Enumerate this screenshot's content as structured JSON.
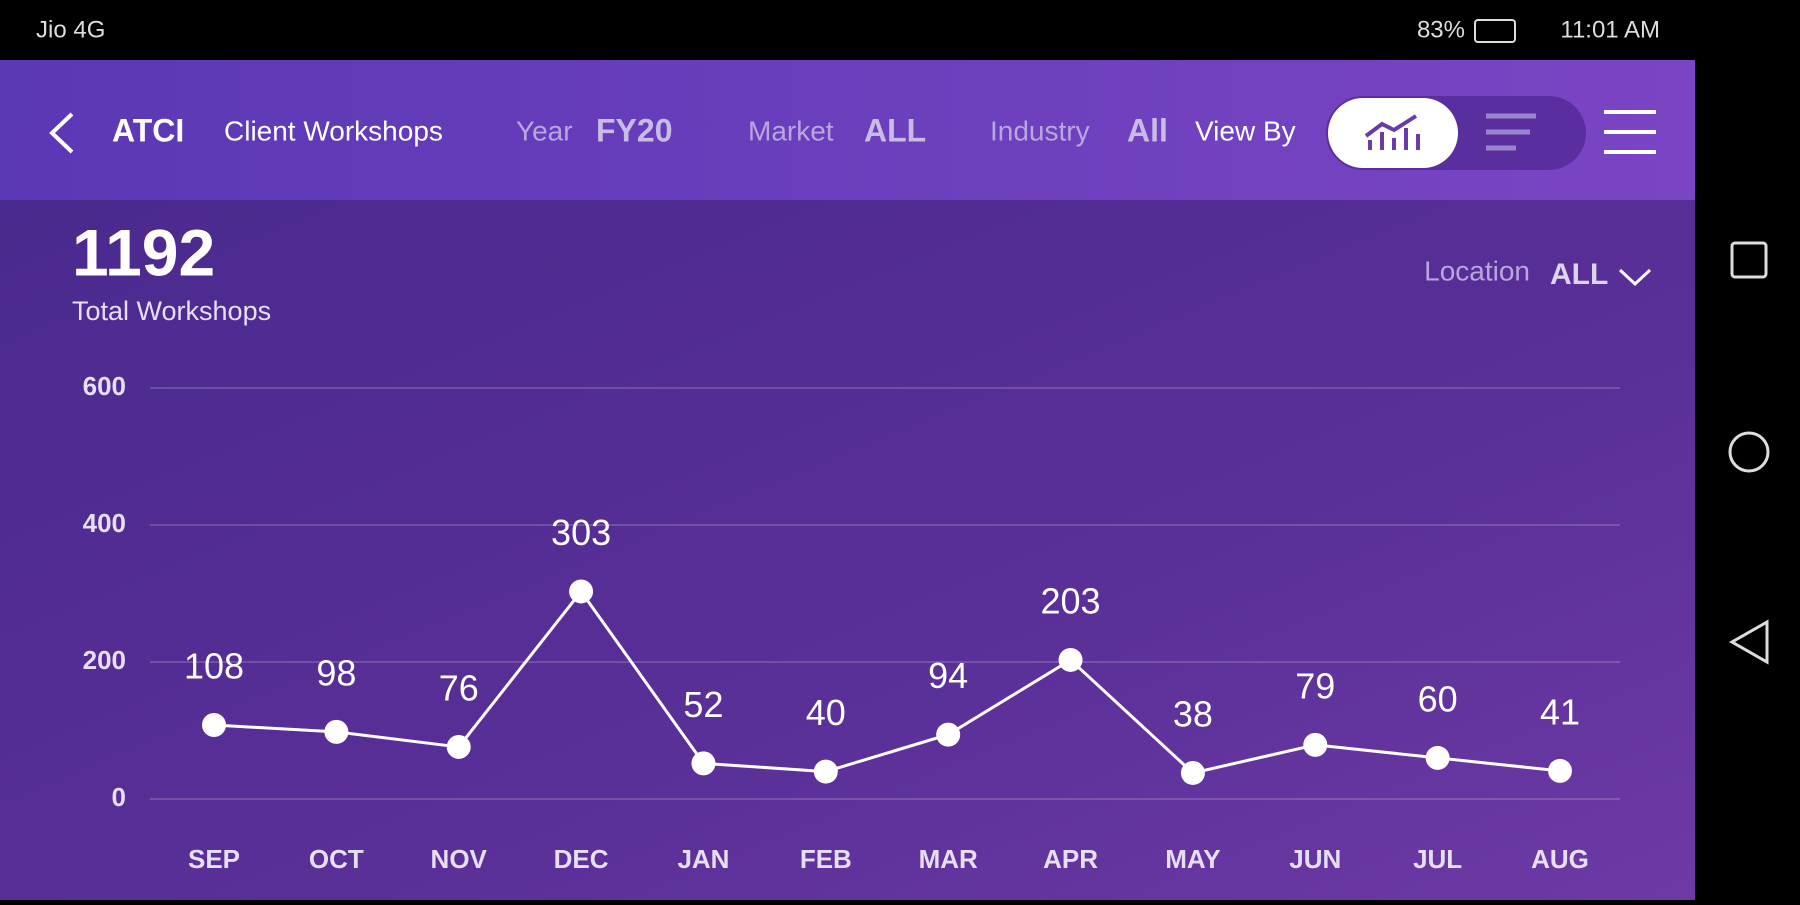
{
  "status_bar": {
    "carrier": "Jio 4G",
    "battery": "83%",
    "time": "11:01 AM"
  },
  "header": {
    "brand": "ATCI",
    "title": "Client Workshops",
    "year_label": "Year",
    "year_value": "FY20",
    "market_label": "Market",
    "market_value": "ALL",
    "industry_label": "Industry",
    "industry_value": "All",
    "view_by_label": "View By"
  },
  "summary": {
    "total": "1192",
    "total_label": "Total Workshops",
    "location_label": "Location",
    "location_value": "ALL"
  },
  "chart_data": {
    "type": "line",
    "categories": [
      "SEP",
      "OCT",
      "NOV",
      "DEC",
      "JAN",
      "FEB",
      "MAR",
      "APR",
      "MAY",
      "JUN",
      "JUL",
      "AUG"
    ],
    "values": [
      108,
      98,
      76,
      303,
      52,
      40,
      94,
      203,
      38,
      79,
      60,
      41
    ],
    "color": "#ffffff",
    "ylim": [
      0,
      600
    ],
    "yticks": [
      0,
      200,
      400,
      600
    ],
    "grid": true
  }
}
